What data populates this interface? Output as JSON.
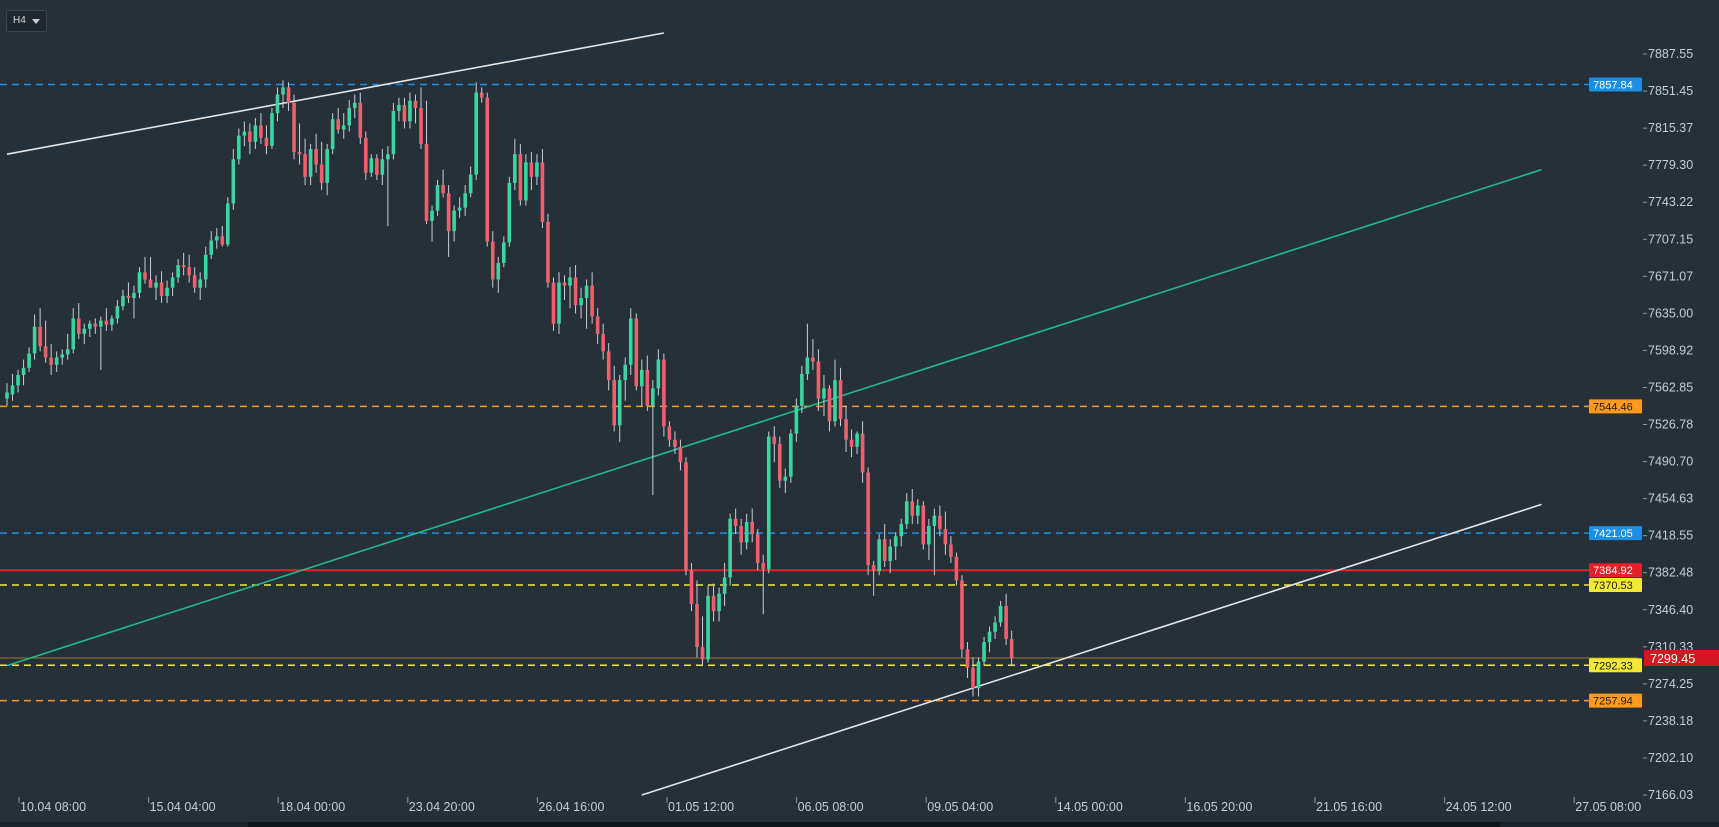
{
  "toolbar": {
    "timeframe": "H4"
  },
  "chart_data": {
    "type": "candlestick",
    "ylim": [
      7148,
      7906
    ],
    "y_ticks": [
      "7887.55",
      "7851.45",
      "7815.37",
      "7779.30",
      "7743.22",
      "7707.15",
      "7671.07",
      "7635.00",
      "7598.92",
      "7562.85",
      "7526.78",
      "7490.70",
      "7454.63",
      "7418.55",
      "7382.48",
      "7346.40",
      "7310.33",
      "7274.25",
      "7238.18",
      "7202.10",
      "7166.03"
    ],
    "x_ticks": [
      "10.04 08:00",
      "15.04 04:00",
      "18.04 00:00",
      "23.04 20:00",
      "26.04 16:00",
      "01.05 12:00",
      "06.05 08:00",
      "09.05 04:00",
      "14.05 00:00",
      "16.05 20:00",
      "21.05 16:00",
      "24.05 12:00",
      "27.05 08:00"
    ],
    "horizontal_levels": [
      {
        "value": 7857.84,
        "label": "7857.84",
        "color": "#1a8fe3",
        "style": "dashed"
      },
      {
        "value": 7544.46,
        "label": "7544.46",
        "color": "#ff9a1f",
        "style": "dashed"
      },
      {
        "value": 7421.05,
        "label": "7421.05",
        "color": "#1a8fe3",
        "style": "dashed"
      },
      {
        "value": 7384.92,
        "label": "7384.92",
        "color": "#e5202b",
        "style": "solid"
      },
      {
        "value": 7370.53,
        "label": "7370.53",
        "color": "#f1ea33",
        "style": "dashed"
      },
      {
        "value": 7299.45,
        "label": "7299.45",
        "color": "#e5202b",
        "style": "price"
      },
      {
        "value": 7292.33,
        "label": "7292.33",
        "color": "#f1ea33",
        "style": "dashed"
      },
      {
        "value": 7257.94,
        "label": "7257.94",
        "color": "#ff9a1f",
        "style": "dashed"
      }
    ],
    "current_price": 7299.45,
    "trend_lines": [
      {
        "color": "#e6e6e6",
        "points": [
          [
            0,
            7790
          ],
          [
            119,
            7908
          ]
        ]
      },
      {
        "color": "#1fb98c",
        "points": [
          [
            0,
            7292
          ],
          [
            278,
            7775
          ]
        ]
      },
      {
        "color": "#e6e6e6",
        "points": [
          [
            115,
            7166
          ],
          [
            278,
            7449
          ]
        ]
      }
    ],
    "colors": {
      "up": "#39d6a1",
      "down": "#f0606c",
      "wick": "#c8ced4"
    },
    "ohlc": [
      [
        7552,
        7567,
        7545,
        7558
      ],
      [
        7556,
        7576,
        7550,
        7565
      ],
      [
        7565,
        7580,
        7558,
        7575
      ],
      [
        7575,
        7590,
        7565,
        7582
      ],
      [
        7582,
        7602,
        7578,
        7596
      ],
      [
        7596,
        7634,
        7590,
        7622
      ],
      [
        7622,
        7640,
        7598,
        7603
      ],
      [
        7603,
        7628,
        7587,
        7592
      ],
      [
        7592,
        7605,
        7575,
        7585
      ],
      [
        7585,
        7598,
        7578,
        7592
      ],
      [
        7592,
        7600,
        7585,
        7595
      ],
      [
        7595,
        7615,
        7590,
        7600
      ],
      [
        7600,
        7640,
        7596,
        7630
      ],
      [
        7630,
        7645,
        7610,
        7615
      ],
      [
        7615,
        7625,
        7605,
        7620
      ],
      [
        7620,
        7628,
        7612,
        7625
      ],
      [
        7625,
        7630,
        7615,
        7622
      ],
      [
        7622,
        7632,
        7580,
        7628
      ],
      [
        7628,
        7640,
        7618,
        7624
      ],
      [
        7624,
        7633,
        7618,
        7630
      ],
      [
        7630,
        7648,
        7625,
        7642
      ],
      [
        7642,
        7658,
        7638,
        7652
      ],
      [
        7652,
        7665,
        7645,
        7650
      ],
      [
        7650,
        7662,
        7630,
        7655
      ],
      [
        7655,
        7680,
        7650,
        7675
      ],
      [
        7675,
        7690,
        7664,
        7668
      ],
      [
        7668,
        7690,
        7660,
        7660
      ],
      [
        7660,
        7672,
        7648,
        7665
      ],
      [
        7665,
        7676,
        7645,
        7652
      ],
      [
        7652,
        7667,
        7645,
        7660
      ],
      [
        7660,
        7675,
        7652,
        7670
      ],
      [
        7670,
        7688,
        7665,
        7682
      ],
      [
        7682,
        7694,
        7672,
        7680
      ],
      [
        7680,
        7692,
        7665,
        7672
      ],
      [
        7672,
        7680,
        7655,
        7660
      ],
      [
        7660,
        7675,
        7648,
        7668
      ],
      [
        7668,
        7700,
        7660,
        7692
      ],
      [
        7692,
        7715,
        7688,
        7706
      ],
      [
        7706,
        7718,
        7698,
        7710
      ],
      [
        7710,
        7720,
        7700,
        7702
      ],
      [
        7702,
        7748,
        7700,
        7742
      ],
      [
        7742,
        7795,
        7736,
        7785
      ],
      [
        7785,
        7815,
        7780,
        7808
      ],
      [
        7808,
        7822,
        7798,
        7812
      ],
      [
        7812,
        7820,
        7790,
        7802
      ],
      [
        7802,
        7825,
        7795,
        7818
      ],
      [
        7818,
        7830,
        7800,
        7806
      ],
      [
        7806,
        7818,
        7790,
        7798
      ],
      [
        7798,
        7835,
        7795,
        7830
      ],
      [
        7830,
        7855,
        7822,
        7848
      ],
      [
        7848,
        7862,
        7835,
        7855
      ],
      [
        7855,
        7860,
        7832,
        7840
      ],
      [
        7840,
        7848,
        7785,
        7792
      ],
      [
        7792,
        7820,
        7780,
        7790
      ],
      [
        7790,
        7805,
        7760,
        7768
      ],
      [
        7768,
        7800,
        7760,
        7795
      ],
      [
        7795,
        7810,
        7772,
        7780
      ],
      [
        7780,
        7802,
        7755,
        7762
      ],
      [
        7762,
        7800,
        7750,
        7795
      ],
      [
        7795,
        7830,
        7790,
        7824
      ],
      [
        7824,
        7835,
        7810,
        7814
      ],
      [
        7814,
        7830,
        7805,
        7818
      ],
      [
        7818,
        7843,
        7812,
        7835
      ],
      [
        7835,
        7848,
        7825,
        7840
      ],
      [
        7840,
        7850,
        7800,
        7806
      ],
      [
        7806,
        7812,
        7765,
        7772
      ],
      [
        7772,
        7790,
        7768,
        7786
      ],
      [
        7786,
        7790,
        7765,
        7770
      ],
      [
        7770,
        7795,
        7760,
        7785
      ],
      [
        7785,
        7798,
        7720,
        7790
      ],
      [
        7790,
        7840,
        7785,
        7832
      ],
      [
        7832,
        7845,
        7822,
        7838
      ],
      [
        7838,
        7845,
        7815,
        7822
      ],
      [
        7822,
        7850,
        7815,
        7842
      ],
      [
        7842,
        7848,
        7820,
        7835
      ],
      [
        7835,
        7855,
        7795,
        7800
      ],
      [
        7800,
        7842,
        7722,
        7725
      ],
      [
        7725,
        7740,
        7705,
        7735
      ],
      [
        7735,
        7765,
        7730,
        7760
      ],
      [
        7760,
        7775,
        7748,
        7752
      ],
      [
        7752,
        7760,
        7690,
        7715
      ],
      [
        7715,
        7740,
        7705,
        7735
      ],
      [
        7735,
        7748,
        7728,
        7738
      ],
      [
        7738,
        7760,
        7730,
        7752
      ],
      [
        7752,
        7778,
        7748,
        7770
      ],
      [
        7770,
        7860,
        7765,
        7850
      ],
      [
        7850,
        7855,
        7840,
        7845
      ],
      [
        7845,
        7850,
        7700,
        7705
      ],
      [
        7705,
        7715,
        7660,
        7668
      ],
      [
        7668,
        7690,
        7655,
        7684
      ],
      [
        7684,
        7710,
        7680,
        7704
      ],
      [
        7704,
        7768,
        7700,
        7762
      ],
      [
        7762,
        7805,
        7755,
        7790
      ],
      [
        7790,
        7800,
        7740,
        7745
      ],
      [
        7745,
        7790,
        7740,
        7782
      ],
      [
        7782,
        7792,
        7755,
        7768
      ],
      [
        7768,
        7790,
        7760,
        7782
      ],
      [
        7782,
        7795,
        7718,
        7724
      ],
      [
        7724,
        7732,
        7660,
        7665
      ],
      [
        7665,
        7670,
        7618,
        7625
      ],
      [
        7625,
        7675,
        7615,
        7665
      ],
      [
        7665,
        7672,
        7648,
        7662
      ],
      [
        7662,
        7680,
        7640,
        7670
      ],
      [
        7670,
        7682,
        7635,
        7643
      ],
      [
        7643,
        7660,
        7630,
        7650
      ],
      [
        7650,
        7668,
        7620,
        7662
      ],
      [
        7662,
        7675,
        7625,
        7632
      ],
      [
        7632,
        7640,
        7605,
        7615
      ],
      [
        7615,
        7625,
        7590,
        7598
      ],
      [
        7598,
        7606,
        7560,
        7570
      ],
      [
        7570,
        7584,
        7520,
        7526
      ],
      [
        7526,
        7575,
        7510,
        7570
      ],
      [
        7570,
        7592,
        7550,
        7585
      ],
      [
        7585,
        7640,
        7575,
        7630
      ],
      [
        7630,
        7635,
        7560,
        7564
      ],
      [
        7564,
        7590,
        7545,
        7580
      ],
      [
        7580,
        7594,
        7540,
        7545
      ],
      [
        7545,
        7570,
        7458,
        7562
      ],
      [
        7562,
        7600,
        7555,
        7590
      ],
      [
        7590,
        7596,
        7515,
        7525
      ],
      [
        7525,
        7530,
        7505,
        7512
      ],
      [
        7512,
        7520,
        7498,
        7505
      ],
      [
        7505,
        7512,
        7482,
        7490
      ],
      [
        7490,
        7495,
        7380,
        7385
      ],
      [
        7385,
        7392,
        7345,
        7352
      ],
      [
        7352,
        7375,
        7300,
        7310
      ],
      [
        7310,
        7340,
        7292,
        7298
      ],
      [
        7298,
        7370,
        7295,
        7360
      ],
      [
        7360,
        7372,
        7335,
        7345
      ],
      [
        7345,
        7368,
        7335,
        7362
      ],
      [
        7362,
        7392,
        7350,
        7378
      ],
      [
        7378,
        7440,
        7370,
        7435
      ],
      [
        7435,
        7445,
        7420,
        7428
      ],
      [
        7428,
        7435,
        7400,
        7412
      ],
      [
        7412,
        7440,
        7405,
        7432
      ],
      [
        7432,
        7445,
        7412,
        7420
      ],
      [
        7420,
        7425,
        7385,
        7392
      ],
      [
        7392,
        7400,
        7342,
        7386
      ],
      [
        7386,
        7520,
        7382,
        7515
      ],
      [
        7515,
        7525,
        7490,
        7508
      ],
      [
        7508,
        7515,
        7465,
        7472
      ],
      [
        7472,
        7484,
        7460,
        7476
      ],
      [
        7476,
        7522,
        7470,
        7518
      ],
      [
        7518,
        7552,
        7510,
        7545
      ],
      [
        7545,
        7584,
        7538,
        7576
      ],
      [
        7576,
        7625,
        7570,
        7592
      ],
      [
        7592,
        7610,
        7580,
        7588
      ],
      [
        7588,
        7600,
        7540,
        7552
      ],
      [
        7552,
        7575,
        7535,
        7562
      ],
      [
        7562,
        7565,
        7520,
        7530
      ],
      [
        7530,
        7590,
        7525,
        7570
      ],
      [
        7570,
        7582,
        7525,
        7532
      ],
      [
        7532,
        7545,
        7500,
        7512
      ],
      [
        7512,
        7522,
        7495,
        7505
      ],
      [
        7505,
        7520,
        7498,
        7518
      ],
      [
        7518,
        7530,
        7470,
        7480
      ],
      [
        7480,
        7485,
        7380,
        7390
      ],
      [
        7390,
        7394,
        7360,
        7384
      ],
      [
        7384,
        7420,
        7380,
        7415
      ],
      [
        7415,
        7430,
        7388,
        7394
      ],
      [
        7394,
        7415,
        7382,
        7408
      ],
      [
        7408,
        7422,
        7395,
        7418
      ],
      [
        7418,
        7435,
        7408,
        7430
      ],
      [
        7430,
        7460,
        7425,
        7452
      ],
      [
        7452,
        7464,
        7430,
        7438
      ],
      [
        7438,
        7454,
        7430,
        7448
      ],
      [
        7448,
        7452,
        7405,
        7410
      ],
      [
        7410,
        7435,
        7395,
        7428
      ],
      [
        7428,
        7445,
        7380,
        7438
      ],
      [
        7438,
        7448,
        7418,
        7425
      ],
      [
        7425,
        7442,
        7400,
        7410
      ],
      [
        7410,
        7418,
        7392,
        7398
      ],
      [
        7398,
        7402,
        7370,
        7375
      ],
      [
        7375,
        7380,
        7300,
        7308
      ],
      [
        7308,
        7315,
        7280,
        7290
      ],
      [
        7290,
        7300,
        7262,
        7270
      ],
      [
        7270,
        7300,
        7262,
        7296
      ],
      [
        7296,
        7320,
        7292,
        7315
      ],
      [
        7315,
        7330,
        7305,
        7325
      ],
      [
        7325,
        7340,
        7318,
        7334
      ],
      [
        7334,
        7355,
        7330,
        7350
      ],
      [
        7350,
        7362,
        7312,
        7318
      ],
      [
        7318,
        7326,
        7292,
        7299
      ]
    ]
  }
}
